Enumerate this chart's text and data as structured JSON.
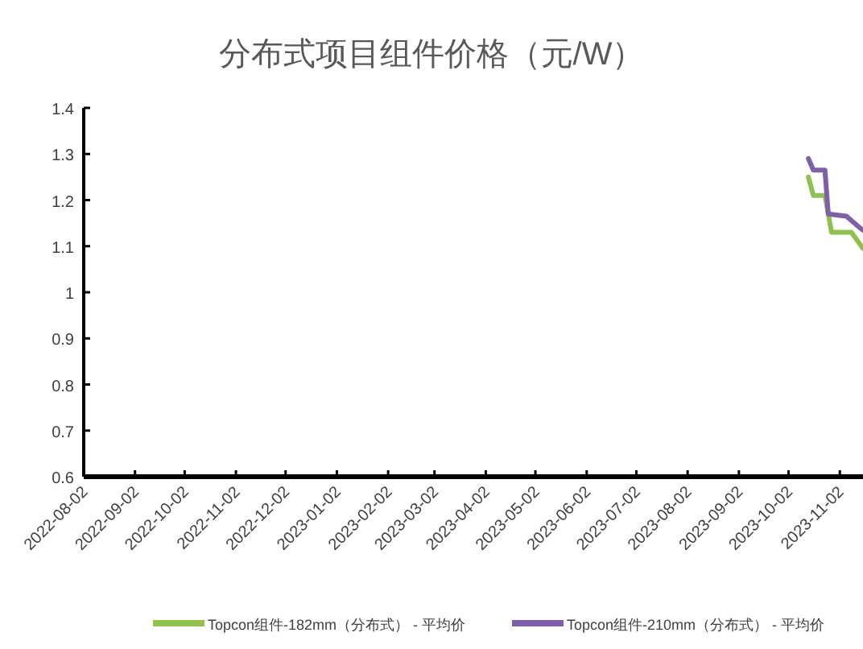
{
  "chart_data": {
    "type": "line",
    "title": "分布式项目组件价格（元/W）",
    "xlim": [
      "2022-08-02",
      "2023-11-16"
    ],
    "xticks": [
      "2022-08-02",
      "2022-09-02",
      "2022-10-02",
      "2022-11-02",
      "2022-12-02",
      "2023-01-02",
      "2023-02-02",
      "2023-03-02",
      "2023-04-02",
      "2023-05-02",
      "2023-06-02",
      "2023-07-02",
      "2023-08-02",
      "2023-09-02",
      "2023-10-02",
      "2023-11-02"
    ],
    "ylim": [
      0.6,
      1.4
    ],
    "yticks": [
      0.6,
      0.7,
      0.8,
      0.9,
      1,
      1.1,
      1.2,
      1.3,
      1.4
    ],
    "legend": "bottom",
    "marker": "none",
    "line_style": "solid",
    "grid": false,
    "series": [
      {
        "name": "Topcon组件-182mm（分布式） - 平均价",
        "color": "#92c050",
        "x": [
          "2023-10-14",
          "2023-10-17",
          "2023-10-24",
          "2023-10-28",
          "2023-11-09",
          "2023-11-16"
        ],
        "values": [
          1.25,
          1.21,
          1.21,
          1.13,
          1.13,
          1.095
        ]
      },
      {
        "name": "Topcon组件-210mm（分布式） - 平均价",
        "color": "#7e5fa8",
        "x": [
          "2023-10-14",
          "2023-10-17",
          "2023-10-24",
          "2023-10-26",
          "2023-11-06",
          "2023-11-14",
          "2023-11-16"
        ],
        "values": [
          1.29,
          1.265,
          1.265,
          1.17,
          1.165,
          1.14,
          1.135
        ]
      }
    ]
  }
}
